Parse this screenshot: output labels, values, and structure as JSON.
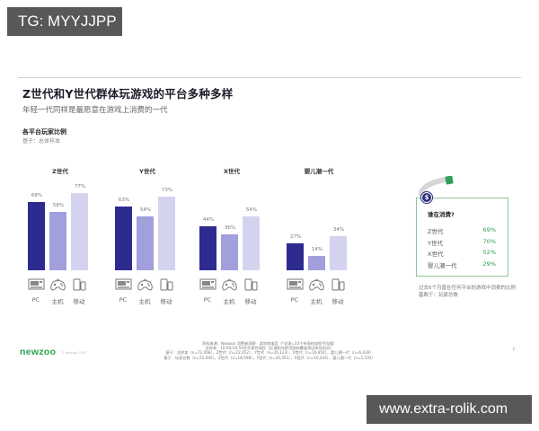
{
  "watermarks": {
    "top": "TG: MYYJJPP",
    "bottom": "www.extra-rolik.com"
  },
  "header": {
    "title": "Z世代和Y世代群体玩游戏的平台多种多样",
    "subtitle": "年轻一代同样是最愿意在游戏上消费的一代"
  },
  "section": {
    "title": "各平台玩家比例",
    "base": "基于：总体样本"
  },
  "platforms": [
    {
      "label": "PC",
      "icon": "pc-icon"
    },
    {
      "label": "主机",
      "icon": "gamepad-icon"
    },
    {
      "label": "移动",
      "icon": "mobile-icon"
    }
  ],
  "colors": {
    "pc": "#2d2b8f",
    "console": "#a19fdc",
    "mobile": "#d4d3ef",
    "accent_green": "#2ea05a",
    "box_border": "#8cc59a"
  },
  "chart_data": {
    "type": "bar",
    "title": "各平台玩家比例",
    "subtitle": "基于：总体样本",
    "categories": [
      "Z世代",
      "Y世代",
      "X世代",
      "婴儿潮一代"
    ],
    "series": [
      {
        "name": "PC",
        "values": [
          68,
          63,
          44,
          27
        ],
        "labels": [
          "68%",
          "63%",
          "44%",
          "27%"
        ]
      },
      {
        "name": "主机",
        "values": [
          58,
          54,
          36,
          14
        ],
        "labels": [
          "58%",
          "54%",
          "36%",
          "14%"
        ]
      },
      {
        "name": "移动",
        "values": [
          77,
          73,
          54,
          34
        ],
        "labels": [
          "77%",
          "73%",
          "54%",
          "34%"
        ]
      }
    ],
    "xlabel": "",
    "ylabel": "",
    "ylim": [
      0,
      100
    ],
    "grid": false,
    "legend": "icons below each bar (PC, 主机, 移动)"
  },
  "spending": {
    "title": "谁在消费?",
    "coin_symbol": "$",
    "rows": [
      {
        "label": "Z世代",
        "value": "69%"
      },
      {
        "label": "Y世代",
        "value": "70%"
      },
      {
        "label": "X世代",
        "value": "52%"
      },
      {
        "label": "婴儿潮一代",
        "value": "29%"
      }
    ],
    "note_line1": "过去6个月曾在任何平台的游戏中消费的比例",
    "note_line2": "基数于：玩家总数"
  },
  "footer": {
    "logo": "newzoo",
    "logo_sub": "© Newzoo 2020",
    "lines": [
      "资料来源：Newzoo 消费者洞察 · 游戏和电竞（*全球=33个市场的加权平均值）",
      "总样本：10-65/10-50岁代表性网民（区域和年龄范围的覆盖率因市场而异）",
      "基于：总样本（n=72,068），Z世代（n=22,652），Y世代（n=26,123），X世代（n=16,854），婴儿潮一代（n=6,439）",
      "基于：玩家总数（n=52,000），Z世代（n=18,598），Y世代（n=20,451），X世代（n=10,416），婴儿潮一代（n=2,535）"
    ],
    "page_number": "7"
  }
}
